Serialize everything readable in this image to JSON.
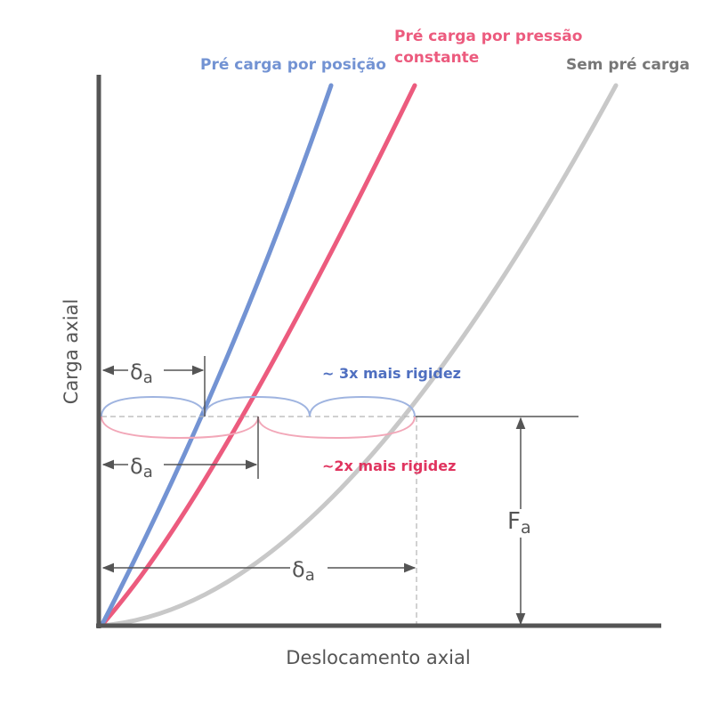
{
  "curves": {
    "position": {
      "label": "Pré carga por posição",
      "color": "#7393d3"
    },
    "pressure": {
      "label_line1": "Pré carga por pressão",
      "label_line2": "constante",
      "color": "#ec5b7e"
    },
    "none": {
      "label": "Sem pré carga",
      "color": "#c8c8c8"
    }
  },
  "axes": {
    "x_label": "Deslocamento axial",
    "y_label": "Carga axial",
    "color": "#555555"
  },
  "annotations": {
    "delta_symbol": "δ",
    "delta_sub": "a",
    "force_symbol": "F",
    "force_sub": "a",
    "stiff_3x": "~ 3x mais rigidez",
    "stiff_3x_color": "#4f6fc0",
    "stiff_2x": "~2x mais rigidez",
    "stiff_2x_color": "#e0345f"
  }
}
